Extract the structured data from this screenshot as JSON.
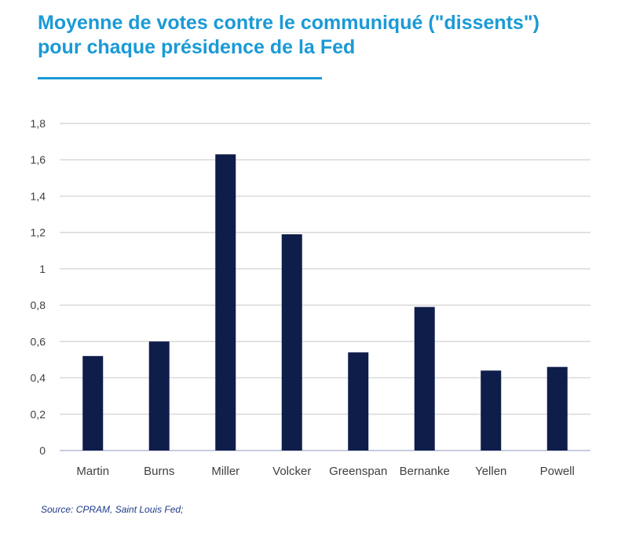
{
  "title_line1": "Moyenne de votes contre le communiqué (\"dissents\")",
  "title_line2": "pour chaque présidence de la Fed",
  "source": "Source:  CPRAM,  Saint Louis Fed;",
  "colors": {
    "title": "#1a9ad6",
    "bar": "#0e1d4a",
    "grid": "#d9d9d9",
    "axis_text": "#404040",
    "source": "#1f3a8a"
  },
  "chart_data": {
    "type": "bar",
    "categories": [
      "Martin",
      "Burns",
      "Miller",
      "Volcker",
      "Greenspan",
      "Bernanke",
      "Yellen",
      "Powell"
    ],
    "values": [
      0.52,
      0.6,
      1.63,
      1.19,
      0.54,
      0.79,
      0.44,
      0.46
    ],
    "ylim": [
      0,
      1.8
    ],
    "yticks": [
      "0",
      "0,2",
      "0,4",
      "0,6",
      "0,8",
      "1",
      "1,2",
      "1,4",
      "1,6",
      "1,8"
    ],
    "grid": true,
    "legend": "none"
  }
}
